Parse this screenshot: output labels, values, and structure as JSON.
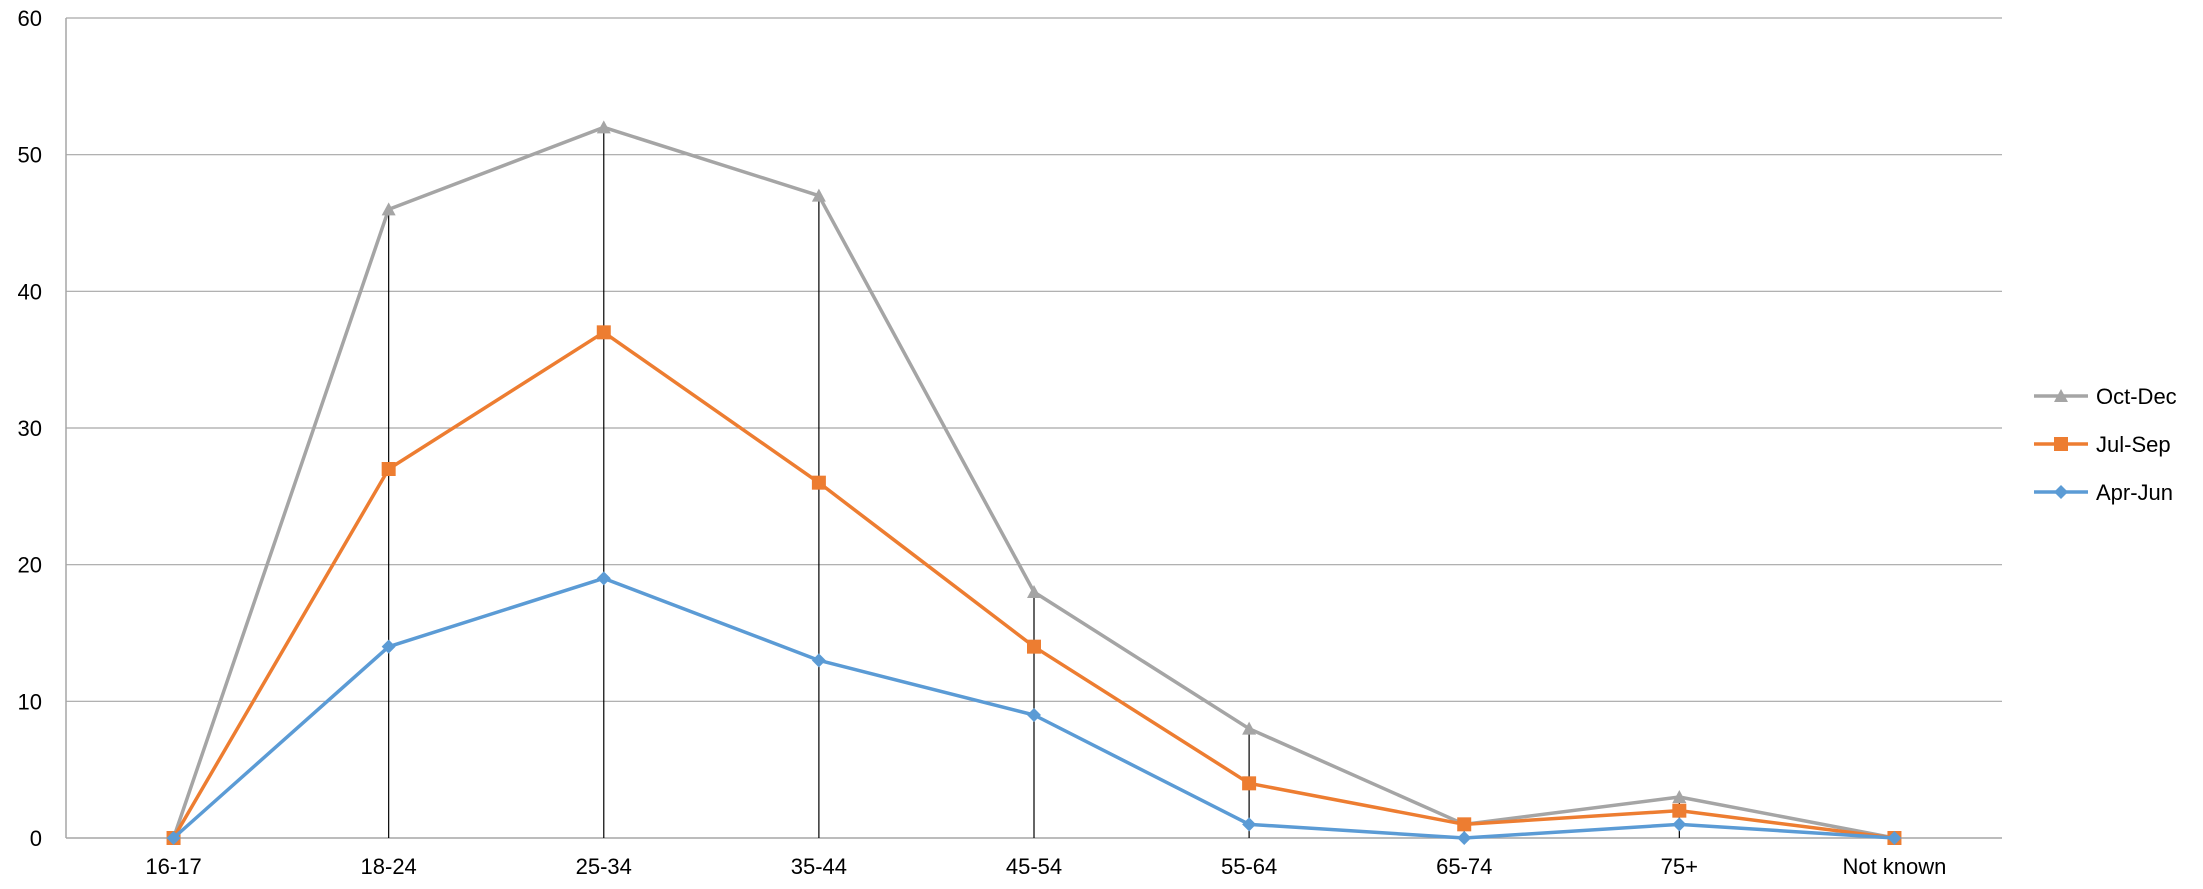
{
  "chart_data": {
    "type": "line",
    "title": "",
    "xlabel": "",
    "ylabel": "",
    "categories": [
      "16-17",
      "18-24",
      "25-34",
      "35-44",
      "45-54",
      "55-64",
      "65-74",
      "75+",
      "Not known"
    ],
    "ylim": [
      0,
      60
    ],
    "yticks": [
      0,
      10,
      20,
      30,
      40,
      50,
      60
    ],
    "grid": "horizontal",
    "high_low_lines": true,
    "legend_position": "right",
    "series": [
      {
        "name": "Oct-Dec",
        "color": "#a5a5a5",
        "marker": "triangle",
        "values": [
          0,
          46,
          52,
          47,
          18,
          8,
          1,
          3,
          0
        ]
      },
      {
        "name": "Jul-Sep",
        "color": "#ed7d31",
        "marker": "square",
        "values": [
          0,
          27,
          37,
          26,
          14,
          4,
          1,
          2,
          0
        ]
      },
      {
        "name": "Apr-Jun",
        "color": "#5b9bd5",
        "marker": "diamond",
        "values": [
          0,
          14,
          19,
          13,
          9,
          1,
          0,
          1,
          0
        ]
      }
    ]
  }
}
